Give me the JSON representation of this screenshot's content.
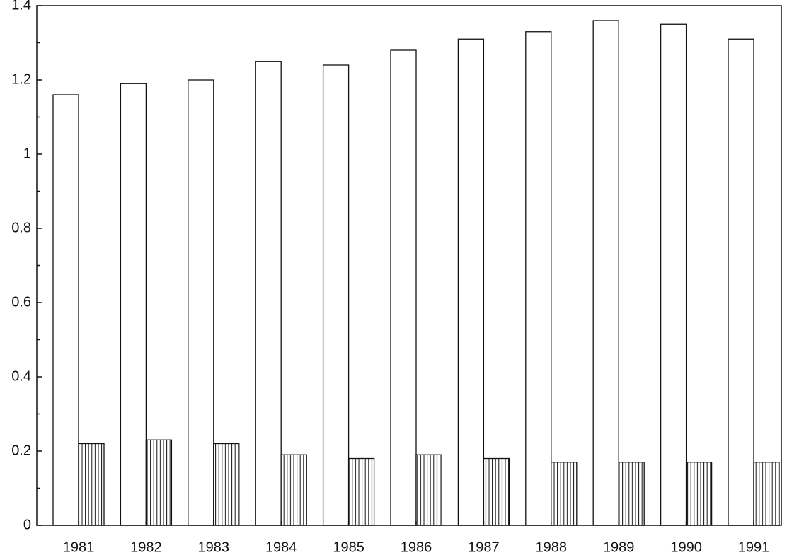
{
  "chart_data": {
    "type": "bar",
    "categories": [
      "1981",
      "1982",
      "1983",
      "1984",
      "1985",
      "1986",
      "1987",
      "1988",
      "1989",
      "1990",
      "1991"
    ],
    "series": [
      {
        "color": "#ffffff",
        "pattern": "none",
        "values": [
          1.16,
          1.19,
          1.2,
          1.25,
          1.24,
          1.28,
          1.31,
          1.33,
          1.36,
          1.35,
          1.31
        ]
      },
      {
        "color": "#ffffff",
        "pattern": "vertical-lines",
        "values": [
          0.22,
          0.23,
          0.22,
          0.19,
          0.18,
          0.19,
          0.18,
          0.17,
          0.17,
          0.17,
          0.17
        ]
      }
    ],
    "ylim": [
      0,
      1.4
    ],
    "yticks": [
      0,
      0.2,
      0.4,
      0.6,
      0.8,
      1,
      1.2,
      1.4
    ],
    "yminorticks": [
      0.1,
      0.3,
      0.5,
      0.7,
      0.9,
      1.1,
      1.3
    ],
    "grid": false
  }
}
